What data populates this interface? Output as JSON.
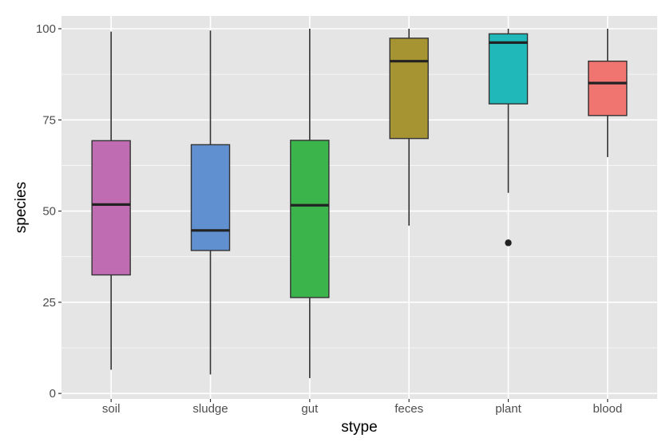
{
  "chart_data": {
    "type": "boxplot",
    "xlabel": "stype",
    "ylabel": "species",
    "ylim": [
      -1.5,
      103.5
    ],
    "yticks": [
      0,
      25,
      50,
      75,
      100
    ],
    "categories": [
      "soil",
      "sludge",
      "gut",
      "feces",
      "plant",
      "blood"
    ],
    "boxes": [
      {
        "category": "soil",
        "min": 6.5,
        "q1": 32.5,
        "median": 51.8,
        "q3": 69.3,
        "max": 99.2,
        "outliers": [],
        "color": "#c06cb2"
      },
      {
        "category": "sludge",
        "min": 5.2,
        "q1": 39.2,
        "median": 44.7,
        "q3": 68.2,
        "max": 99.5,
        "outliers": [],
        "color": "#6090d0"
      },
      {
        "category": "gut",
        "min": 4.2,
        "q1": 26.3,
        "median": 51.6,
        "q3": 69.4,
        "max": 100,
        "outliers": [],
        "color": "#3cb44c"
      },
      {
        "category": "feces",
        "min": 46,
        "q1": 69.9,
        "median": 91.1,
        "q3": 97.4,
        "max": 100,
        "outliers": [],
        "color": "#a69432"
      },
      {
        "category": "plant",
        "min": 55,
        "q1": 79.4,
        "median": 96.2,
        "q3": 98.6,
        "max": 100,
        "outliers": [
          41.3
        ],
        "color": "#20b8b8"
      },
      {
        "category": "blood",
        "min": 64.8,
        "q1": 76.2,
        "median": 85.1,
        "q3": 91.1,
        "max": 100,
        "outliers": [],
        "color": "#f07470"
      }
    ],
    "panel_background": "#e5e5e5",
    "grid_color": "#ffffff",
    "legend": "none"
  }
}
